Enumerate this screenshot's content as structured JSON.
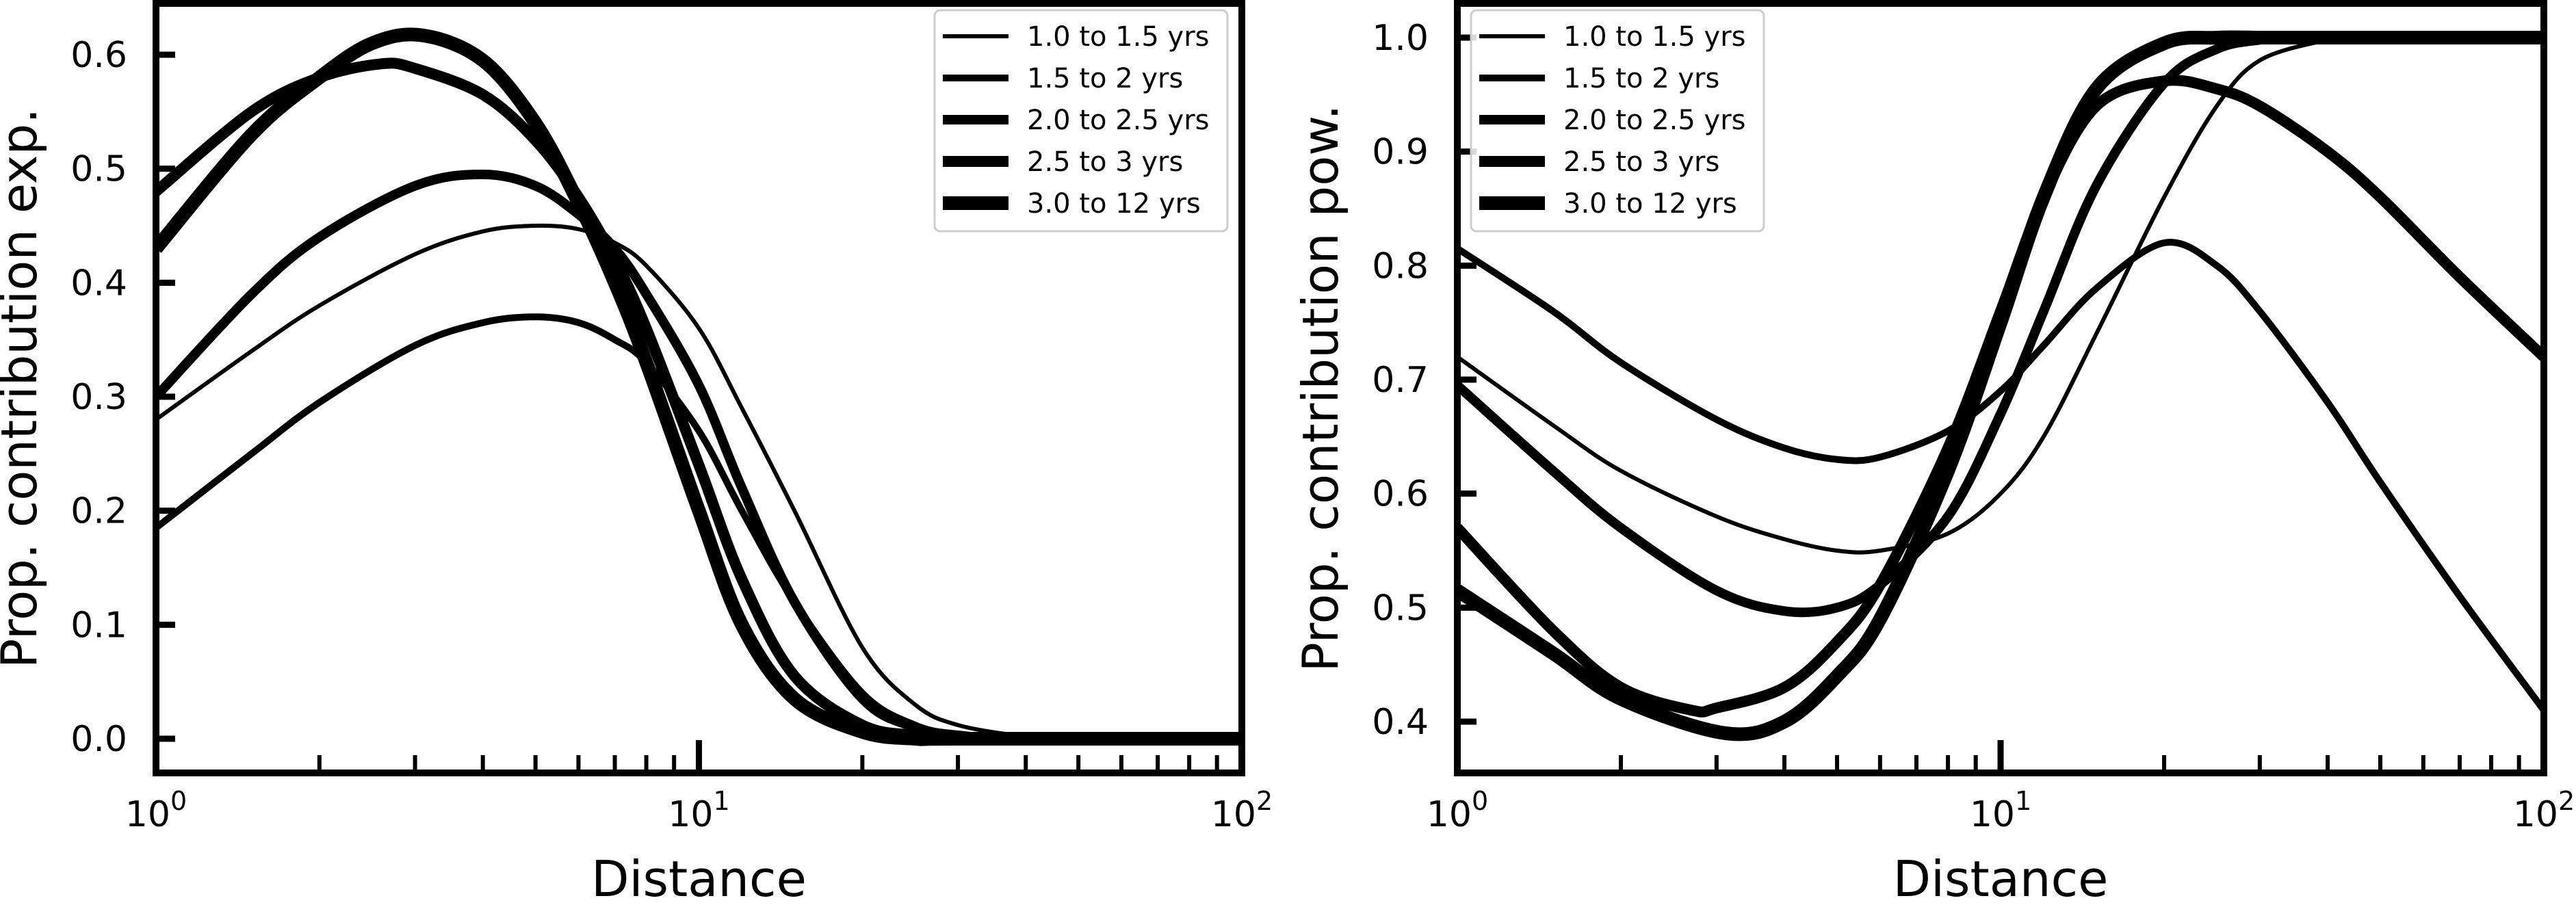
{
  "chart_data": [
    {
      "type": "line",
      "xlabel": "Distance",
      "ylabel": "Prop. contribution exp.",
      "x_scale": "log",
      "xlim": [
        1,
        100
      ],
      "ylim": [
        -0.03,
        0.645
      ],
      "x_ticks": [
        {
          "value": 1,
          "base": "10",
          "exp": "0"
        },
        {
          "value": 10,
          "base": "10",
          "exp": "1"
        },
        {
          "value": 100,
          "base": "10",
          "exp": "2"
        }
      ],
      "y_ticks": [
        {
          "value": 0.0,
          "label": "0.0"
        },
        {
          "value": 0.1,
          "label": "0.1"
        },
        {
          "value": 0.2,
          "label": "0.2"
        },
        {
          "value": 0.3,
          "label": "0.3"
        },
        {
          "value": 0.4,
          "label": "0.4"
        },
        {
          "value": 0.5,
          "label": "0.5"
        },
        {
          "value": 0.6,
          "label": "0.6"
        }
      ],
      "legend_position": "top-right",
      "grid": false,
      "series": [
        {
          "name": "1.0 to 1.5 yrs",
          "x": [
            1,
            1.5,
            2,
            3,
            4,
            5,
            6,
            7,
            8,
            10,
            12,
            15,
            20,
            25,
            30,
            40,
            50,
            100
          ],
          "y": [
            0.28,
            0.34,
            0.38,
            0.425,
            0.445,
            0.45,
            0.447,
            0.435,
            0.415,
            0.36,
            0.29,
            0.2,
            0.08,
            0.03,
            0.012,
            0.002,
            0.0,
            0.0
          ]
        },
        {
          "name": "1.5 to 2 yrs",
          "x": [
            1,
            1.5,
            2,
            3,
            4,
            5,
            6,
            7,
            8,
            10,
            12,
            15,
            20,
            25,
            30,
            40,
            100
          ],
          "y": [
            0.185,
            0.25,
            0.295,
            0.345,
            0.365,
            0.37,
            0.365,
            0.35,
            0.33,
            0.27,
            0.2,
            0.12,
            0.04,
            0.012,
            0.004,
            0.0,
            0.0
          ]
        },
        {
          "name": "2.0 to 2.5 yrs",
          "x": [
            1,
            1.5,
            2,
            3,
            4,
            5,
            6,
            7,
            8,
            10,
            12,
            15,
            20,
            25,
            30,
            40,
            100
          ],
          "y": [
            0.3,
            0.39,
            0.44,
            0.485,
            0.495,
            0.485,
            0.46,
            0.43,
            0.39,
            0.31,
            0.22,
            0.12,
            0.035,
            0.01,
            0.003,
            0.0,
            0.0
          ]
        },
        {
          "name": "2.5 to 3 yrs",
          "x": [
            1,
            1.5,
            2,
            2.6,
            3,
            4,
            5,
            6,
            7,
            8,
            10,
            12,
            15,
            20,
            25,
            30,
            100
          ],
          "y": [
            0.48,
            0.55,
            0.58,
            0.592,
            0.588,
            0.565,
            0.525,
            0.475,
            0.42,
            0.36,
            0.24,
            0.14,
            0.055,
            0.012,
            0.003,
            0.0,
            0.0
          ]
        },
        {
          "name": "3.0 to 12 yrs",
          "x": [
            1,
            1.5,
            2,
            2.5,
            3.1,
            4,
            5,
            6,
            7,
            8,
            10,
            12,
            15,
            20,
            25,
            30,
            100
          ],
          "y": [
            0.43,
            0.53,
            0.58,
            0.61,
            0.617,
            0.595,
            0.54,
            0.47,
            0.4,
            0.33,
            0.2,
            0.1,
            0.035,
            0.006,
            0.0,
            0.0,
            0.0
          ]
        }
      ]
    },
    {
      "type": "line",
      "xlabel": "Distance",
      "ylabel": "Prop. contribution pow.",
      "x_scale": "log",
      "xlim": [
        1,
        100
      ],
      "ylim": [
        0.355,
        1.03
      ],
      "x_ticks": [
        {
          "value": 1,
          "base": "10",
          "exp": "0"
        },
        {
          "value": 10,
          "base": "10",
          "exp": "1"
        },
        {
          "value": 100,
          "base": "10",
          "exp": "2"
        }
      ],
      "y_ticks": [
        {
          "value": 0.4,
          "label": "0.4"
        },
        {
          "value": 0.5,
          "label": "0.5"
        },
        {
          "value": 0.6,
          "label": "0.6"
        },
        {
          "value": 0.7,
          "label": "0.7"
        },
        {
          "value": 0.8,
          "label": "0.8"
        },
        {
          "value": 0.9,
          "label": "0.9"
        },
        {
          "value": 1.0,
          "label": "1.0"
        }
      ],
      "legend_position": "top-left",
      "grid": false,
      "series": [
        {
          "name": "1.0 to 1.5 yrs",
          "x": [
            1,
            1.5,
            2,
            3,
            4,
            5,
            6,
            8,
            10,
            12,
            15,
            20,
            25,
            30,
            40,
            45,
            100
          ],
          "y": [
            0.72,
            0.66,
            0.62,
            0.58,
            0.56,
            0.55,
            0.55,
            0.565,
            0.6,
            0.65,
            0.74,
            0.86,
            0.94,
            0.98,
            0.998,
            1.0,
            1.0
          ]
        },
        {
          "name": "1.5 to 2 yrs",
          "x": [
            1,
            1.5,
            2,
            3,
            4,
            5,
            6,
            8,
            10,
            12,
            15,
            20,
            25,
            30,
            40,
            50,
            70,
            100
          ],
          "y": [
            0.815,
            0.76,
            0.715,
            0.665,
            0.64,
            0.63,
            0.632,
            0.655,
            0.69,
            0.73,
            0.78,
            0.82,
            0.8,
            0.76,
            0.68,
            0.61,
            0.51,
            0.41
          ]
        },
        {
          "name": "2.0 to 2.5 yrs",
          "x": [
            1,
            1.5,
            2,
            3,
            4,
            5,
            6,
            8,
            10,
            12,
            15,
            20,
            25,
            30,
            35,
            50,
            100
          ],
          "y": [
            0.695,
            0.62,
            0.57,
            0.515,
            0.497,
            0.5,
            0.52,
            0.58,
            0.67,
            0.76,
            0.87,
            0.96,
            0.99,
            0.998,
            1.0,
            1.0,
            1.0
          ]
        },
        {
          "name": "2.5 to 3 yrs",
          "x": [
            1,
            1.5,
            2,
            2.7,
            3,
            4,
            5,
            6,
            8,
            10,
            12,
            15,
            20,
            25,
            30,
            40,
            50,
            70,
            100
          ],
          "y": [
            0.57,
            0.48,
            0.43,
            0.41,
            0.412,
            0.43,
            0.47,
            0.52,
            0.64,
            0.76,
            0.86,
            0.94,
            0.962,
            0.955,
            0.94,
            0.9,
            0.86,
            0.79,
            0.72
          ]
        },
        {
          "name": "3.0 to 12 yrs",
          "x": [
            1,
            1.5,
            2,
            3.1,
            4,
            5,
            6,
            8,
            10,
            12,
            15,
            20,
            25,
            30,
            40,
            100
          ],
          "y": [
            0.515,
            0.46,
            0.42,
            0.39,
            0.4,
            0.44,
            0.49,
            0.62,
            0.75,
            0.86,
            0.955,
            0.995,
            1.0,
            1.0,
            1.0,
            1.0
          ]
        }
      ]
    }
  ]
}
